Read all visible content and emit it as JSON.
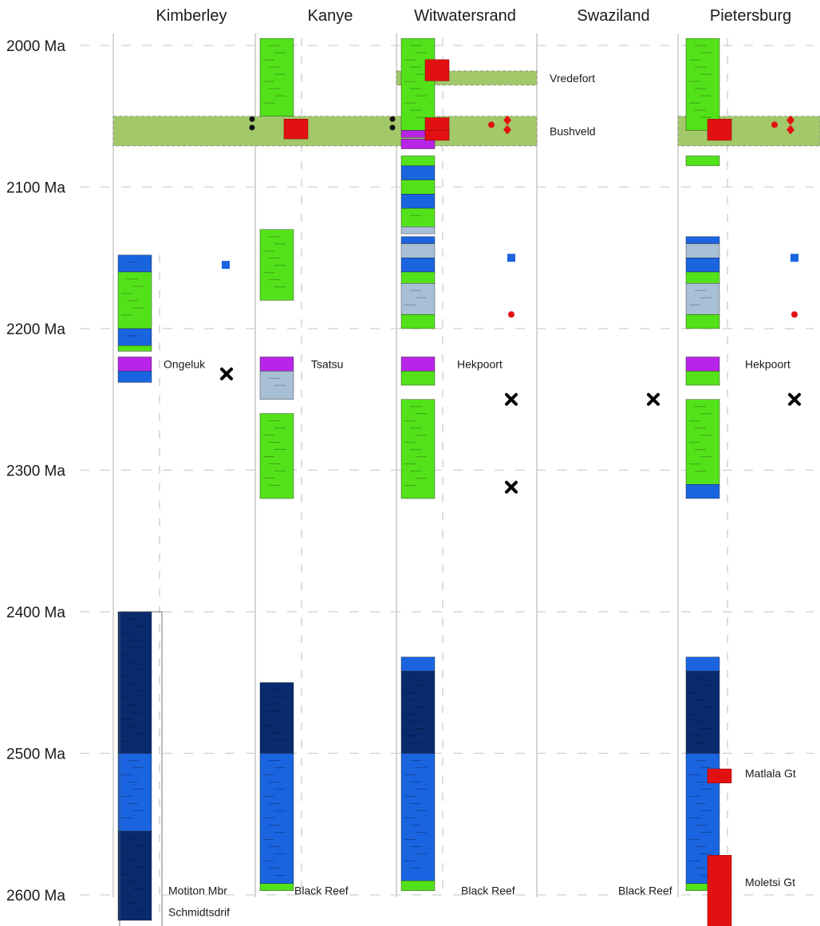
{
  "age_axis": {
    "ticks": [
      {
        "value": 2000,
        "label": "2000 Ma"
      },
      {
        "value": 2100,
        "label": "2100 Ma"
      },
      {
        "value": 2200,
        "label": "2200 Ma"
      },
      {
        "value": 2300,
        "label": "2300 Ma"
      },
      {
        "value": 2400,
        "label": "2400 Ma"
      },
      {
        "value": 2500,
        "label": "2500 Ma"
      },
      {
        "value": 2600,
        "label": "2600 Ma"
      }
    ]
  },
  "regions": [
    {
      "name": "Kimberley"
    },
    {
      "name": "Kanye"
    },
    {
      "name": "Witwatersrand"
    },
    {
      "name": "Swaziland"
    },
    {
      "name": "Pietersburg"
    }
  ],
  "events": [
    {
      "label": "Vredefort",
      "age_from": 2018,
      "age_to": 2028
    },
    {
      "label": "Bushveld",
      "age_from": 2050,
      "age_to": 2071
    }
  ],
  "unit_labels": [
    {
      "region": 0,
      "text": "Ongeluk",
      "age": 2225
    },
    {
      "region": 1,
      "text": "Tsatsu",
      "age": 2225
    },
    {
      "region": 2,
      "text": "Hekpoort",
      "age": 2225
    },
    {
      "region": 4,
      "text": "Hekpoort",
      "age": 2225
    },
    {
      "region": 0,
      "text": "Motiton Mbr",
      "age": 2597
    },
    {
      "region": 0,
      "text": "Schmidtsdrif",
      "age": 2612
    },
    {
      "region": 1,
      "text": "Black Reef",
      "age": 2597
    },
    {
      "region": 2,
      "text": "Black Reef",
      "age": 2597
    },
    {
      "region": 3,
      "text": "Black Reef",
      "age": 2597
    },
    {
      "region": 4,
      "text": "Matlala Gt",
      "age": 2514
    },
    {
      "region": 4,
      "text": "Moletsi Gt",
      "age": 2591
    }
  ],
  "colors": {
    "green": "#53e21a",
    "blue": "#1a64e0",
    "navy": "#0a2a6e",
    "lightblue": "#a8bfd6",
    "magenta": "#b824e8",
    "red": "#e21111",
    "band": "#a2c86a",
    "gridline": "#cfcfcf",
    "divider": "#c8c8c8"
  },
  "columns": [
    {
      "region": 0,
      "strata": [
        {
          "from": 2148,
          "to": 2160,
          "color": "blue"
        },
        {
          "from": 2160,
          "to": 2200,
          "color": "green"
        },
        {
          "from": 2200,
          "to": 2212,
          "color": "blue"
        },
        {
          "from": 2212,
          "to": 2216,
          "color": "green"
        },
        {
          "from": 2220,
          "to": 2230,
          "color": "magenta"
        },
        {
          "from": 2230,
          "to": 2238,
          "color": "blue"
        },
        {
          "from": 2400,
          "to": 2500,
          "color": "navy"
        },
        {
          "from": 2500,
          "to": 2555,
          "color": "blue"
        },
        {
          "from": 2555,
          "to": 2618,
          "color": "navy"
        }
      ]
    },
    {
      "region": 1,
      "strata": [
        {
          "from": 1995,
          "to": 2050,
          "color": "green"
        },
        {
          "from": 2130,
          "to": 2180,
          "color": "green"
        },
        {
          "from": 2220,
          "to": 2230,
          "color": "magenta"
        },
        {
          "from": 2230,
          "to": 2250,
          "color": "lightblue"
        },
        {
          "from": 2260,
          "to": 2320,
          "color": "green"
        },
        {
          "from": 2450,
          "to": 2500,
          "color": "navy"
        },
        {
          "from": 2500,
          "to": 2592,
          "color": "blue"
        },
        {
          "from": 2592,
          "to": 2597,
          "color": "green"
        }
      ]
    },
    {
      "region": 2,
      "strata": [
        {
          "from": 1995,
          "to": 2060,
          "color": "green"
        },
        {
          "from": 2060,
          "to": 2065,
          "color": "magenta"
        },
        {
          "from": 2066,
          "to": 2073,
          "color": "magenta"
        },
        {
          "from": 2078,
          "to": 2085,
          "color": "green"
        },
        {
          "from": 2085,
          "to": 2095,
          "color": "blue"
        },
        {
          "from": 2095,
          "to": 2105,
          "color": "green"
        },
        {
          "from": 2105,
          "to": 2115,
          "color": "blue"
        },
        {
          "from": 2115,
          "to": 2128,
          "color": "green"
        },
        {
          "from": 2128,
          "to": 2133,
          "color": "lightblue"
        },
        {
          "from": 2135,
          "to": 2140,
          "color": "blue"
        },
        {
          "from": 2140,
          "to": 2150,
          "color": "lightblue"
        },
        {
          "from": 2150,
          "to": 2160,
          "color": "blue"
        },
        {
          "from": 2160,
          "to": 2168,
          "color": "green"
        },
        {
          "from": 2168,
          "to": 2190,
          "color": "lightblue"
        },
        {
          "from": 2190,
          "to": 2200,
          "color": "green"
        },
        {
          "from": 2220,
          "to": 2230,
          "color": "magenta"
        },
        {
          "from": 2230,
          "to": 2240,
          "color": "green"
        },
        {
          "from": 2250,
          "to": 2320,
          "color": "green"
        },
        {
          "from": 2432,
          "to": 2442,
          "color": "blue"
        },
        {
          "from": 2442,
          "to": 2500,
          "color": "navy"
        },
        {
          "from": 2500,
          "to": 2590,
          "color": "blue"
        },
        {
          "from": 2590,
          "to": 2597,
          "color": "green"
        }
      ]
    },
    {
      "region": 4,
      "strata": [
        {
          "from": 1995,
          "to": 2060,
          "color": "green"
        },
        {
          "from": 2078,
          "to": 2085,
          "color": "green"
        },
        {
          "from": 2135,
          "to": 2140,
          "color": "blue"
        },
        {
          "from": 2140,
          "to": 2150,
          "color": "lightblue"
        },
        {
          "from": 2150,
          "to": 2160,
          "color": "blue"
        },
        {
          "from": 2160,
          "to": 2168,
          "color": "green"
        },
        {
          "from": 2168,
          "to": 2190,
          "color": "lightblue"
        },
        {
          "from": 2190,
          "to": 2200,
          "color": "green"
        },
        {
          "from": 2220,
          "to": 2230,
          "color": "magenta"
        },
        {
          "from": 2230,
          "to": 2240,
          "color": "green"
        },
        {
          "from": 2250,
          "to": 2310,
          "color": "green"
        },
        {
          "from": 2310,
          "to": 2320,
          "color": "blue"
        },
        {
          "from": 2432,
          "to": 2442,
          "color": "blue"
        },
        {
          "from": 2442,
          "to": 2500,
          "color": "navy"
        },
        {
          "from": 2500,
          "to": 2592,
          "color": "blue"
        },
        {
          "from": 2592,
          "to": 2597,
          "color": "green"
        }
      ]
    }
  ],
  "red_units": [
    {
      "region": 1,
      "from": 2052,
      "to": 2066
    },
    {
      "region": 2,
      "from": 2010,
      "to": 2025
    },
    {
      "region": 2,
      "from": 2051,
      "to": 2065
    },
    {
      "region": 2,
      "from": 2060,
      "to": 2067
    },
    {
      "region": 4,
      "from": 2052,
      "to": 2067
    },
    {
      "region": 4,
      "from": 2511,
      "to": 2521
    },
    {
      "region": 4,
      "from": 2572,
      "to": 2640
    }
  ],
  "markers": [
    {
      "region": 0,
      "type": "square",
      "color": "blue",
      "age": 2155
    },
    {
      "region": 0,
      "type": "cross",
      "color": "black",
      "age": 2232
    },
    {
      "region": 2,
      "type": "square",
      "color": "blue",
      "age": 2150
    },
    {
      "region": 2,
      "type": "dot",
      "color": "red",
      "age": 2190
    },
    {
      "region": 2,
      "type": "cross",
      "color": "black",
      "age": 2250
    },
    {
      "region": 2,
      "type": "cross",
      "color": "black",
      "age": 2312
    },
    {
      "region": 2,
      "type": "dot",
      "color": "red",
      "age": 2056
    },
    {
      "region": 2,
      "type": "diamond",
      "color": "red",
      "age": 2055
    },
    {
      "region": 3,
      "type": "cross",
      "color": "black",
      "age": 2250
    },
    {
      "region": 4,
      "type": "square",
      "color": "blue",
      "age": 2150
    },
    {
      "region": 4,
      "type": "dot",
      "color": "red",
      "age": 2190
    },
    {
      "region": 4,
      "type": "cross",
      "color": "black",
      "age": 2250
    },
    {
      "region": 4,
      "type": "dot",
      "color": "red",
      "age": 2056
    },
    {
      "region": 4,
      "type": "diamond",
      "color": "red",
      "age": 2055
    }
  ]
}
